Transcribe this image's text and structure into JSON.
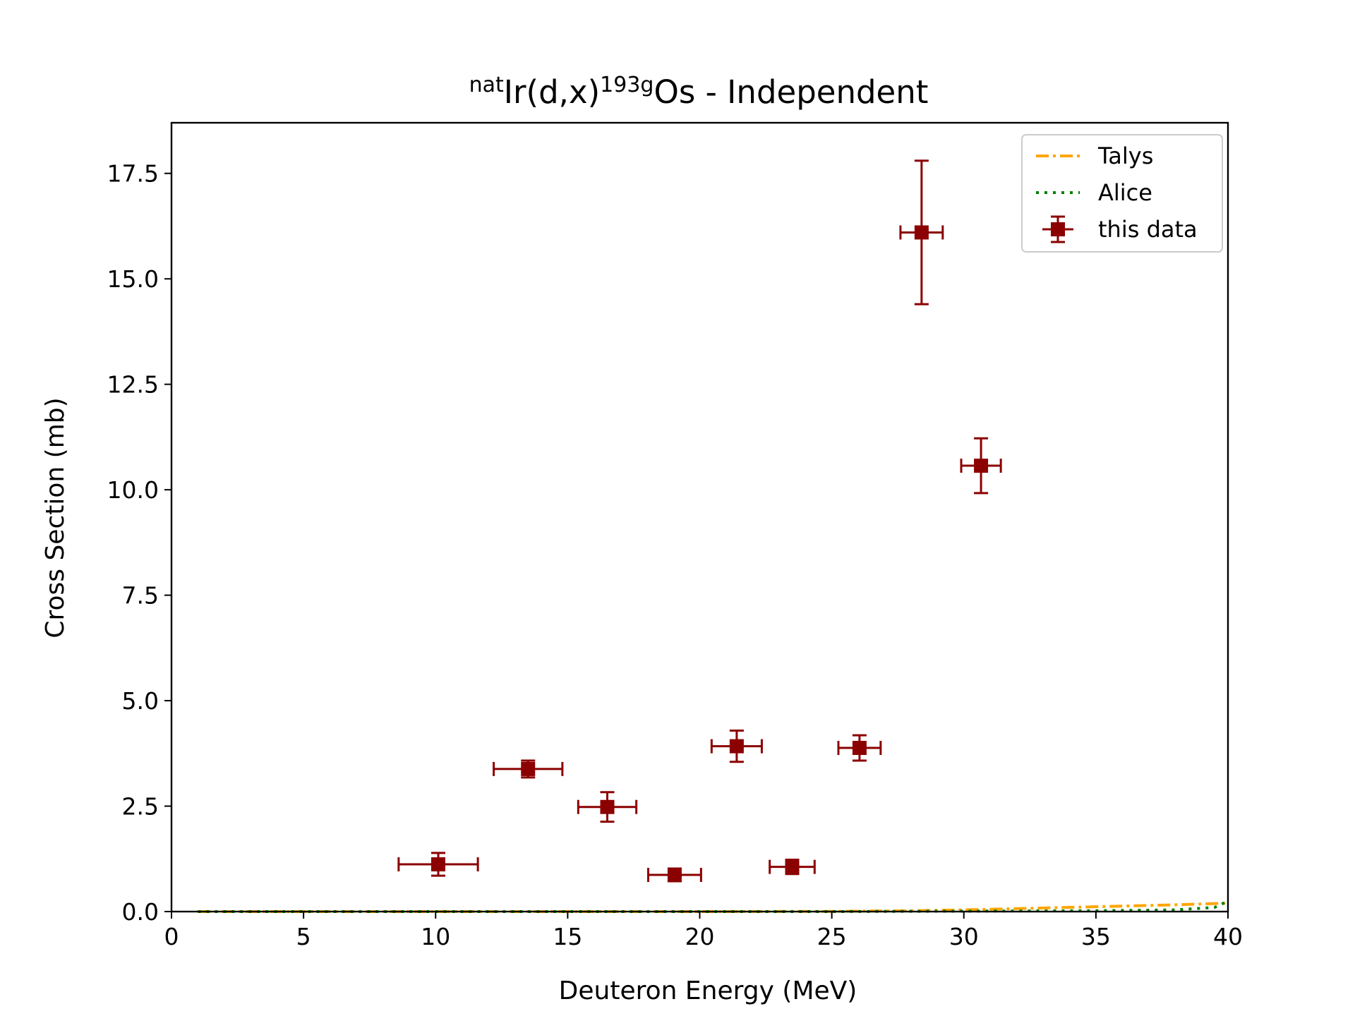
{
  "chart_data": {
    "type": "scatter",
    "title": {
      "sup1": "nat",
      "main1": "Ir(d,x)",
      "sup2": "193g",
      "main2": "Os - Independent"
    },
    "xlabel": "Deuteron Energy (MeV)",
    "ylabel": "Cross Section (mb)",
    "xlim": [
      0,
      40
    ],
    "ylim": [
      0,
      18.7
    ],
    "x_ticks": [
      0,
      5,
      10,
      15,
      20,
      25,
      30,
      35,
      40
    ],
    "x_tick_labels": [
      "0",
      "5",
      "10",
      "15",
      "20",
      "25",
      "30",
      "35",
      "40"
    ],
    "y_ticks": [
      0,
      2.5,
      5,
      7.5,
      10,
      12.5,
      15,
      17.5
    ],
    "y_tick_labels": [
      "0.0",
      "2.5",
      "5.0",
      "7.5",
      "10.0",
      "12.5",
      "15.0",
      "17.5"
    ],
    "grid": false,
    "legend_position": "top-right",
    "colors": {
      "data": "#8b0000",
      "talys": "#ffa500",
      "alice": "#008000"
    },
    "series": [
      {
        "name": "Talys",
        "kind": "line",
        "style": "dash-dot",
        "x": [
          1,
          5,
          10,
          15,
          20,
          25,
          28,
          30,
          32,
          34,
          36,
          38,
          40
        ],
        "y": [
          0.0,
          0.0,
          0.0,
          0.0,
          0.0,
          0.005,
          0.02,
          0.04,
          0.07,
          0.1,
          0.13,
          0.16,
          0.2
        ]
      },
      {
        "name": "Alice",
        "kind": "line",
        "style": "dotted",
        "x": [
          1,
          5,
          10,
          15,
          20,
          25,
          30,
          35,
          38,
          39.5,
          40
        ],
        "y": [
          0.0,
          0.0,
          0.0,
          0.0,
          0.0,
          0.0,
          0.01,
          0.02,
          0.04,
          0.1,
          0.25
        ]
      },
      {
        "name": "this data",
        "kind": "errorbar",
        "points": [
          {
            "x": 10.1,
            "y": 1.12,
            "xerr": 1.5,
            "yerr": 0.27
          },
          {
            "x": 13.5,
            "y": 3.38,
            "xerr": 1.3,
            "yerr": 0.2
          },
          {
            "x": 16.5,
            "y": 2.48,
            "xerr": 1.1,
            "yerr": 0.35
          },
          {
            "x": 19.05,
            "y": 0.87,
            "xerr": 1.0,
            "yerr": 0.15
          },
          {
            "x": 21.4,
            "y": 3.92,
            "xerr": 0.95,
            "yerr": 0.37
          },
          {
            "x": 23.5,
            "y": 1.06,
            "xerr": 0.85,
            "yerr": 0.17
          },
          {
            "x": 26.05,
            "y": 3.88,
            "xerr": 0.8,
            "yerr": 0.3
          },
          {
            "x": 28.4,
            "y": 16.1,
            "xerr": 0.8,
            "yerr": 1.7
          },
          {
            "x": 30.65,
            "y": 10.57,
            "xerr": 0.75,
            "yerr": 0.65
          }
        ]
      }
    ]
  }
}
